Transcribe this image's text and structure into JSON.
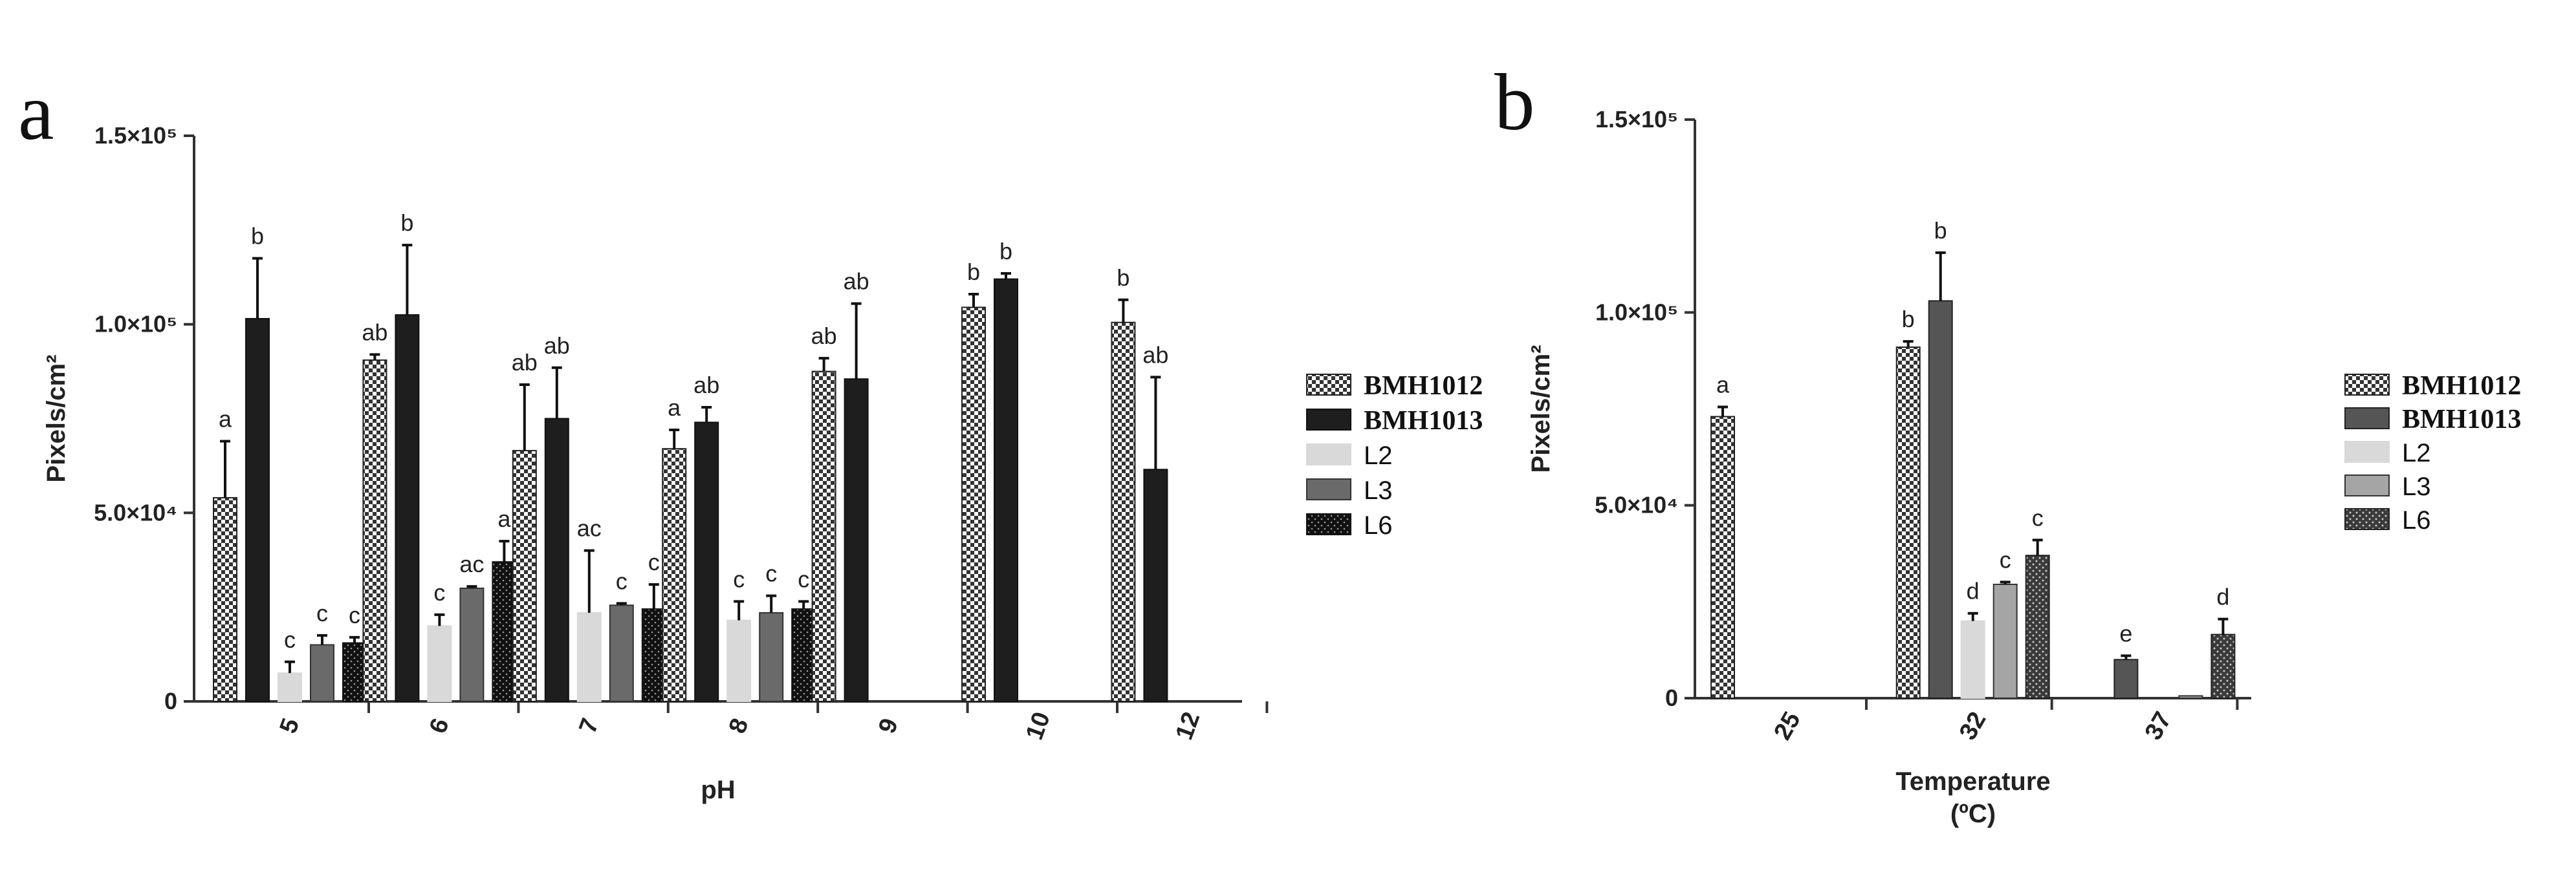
{
  "chart_data": [
    {
      "type": "bar",
      "panel_label": "a",
      "xlabel": "pH",
      "ylabel": "Pixels/cm²",
      "ylim": [
        0,
        150000
      ],
      "yticks": [
        "0",
        "5.0×10⁴",
        "1.0×10⁵",
        "1.5×10⁵"
      ],
      "ytick_values": [
        0,
        50000,
        100000,
        150000
      ],
      "categories": [
        "5",
        "6",
        "7",
        "8",
        "9",
        "10",
        "12"
      ],
      "legend_position": "right",
      "series": [
        {
          "name": "BMH1012",
          "pattern": "checker",
          "values": [
            54000,
            90500,
            66500,
            67000,
            87500,
            104500,
            100500
          ],
          "errors": [
            15000,
            1500,
            17500,
            5000,
            3500,
            3500,
            6000
          ],
          "labels": [
            "a",
            "ab",
            "ab",
            "a",
            "ab",
            "b",
            "b"
          ]
        },
        {
          "name": "BMH1013",
          "pattern": "black",
          "values": [
            101500,
            102500,
            75000,
            74000,
            85500,
            112000,
            61500
          ],
          "errors": [
            16000,
            18500,
            13500,
            4000,
            20000,
            1500,
            24500
          ],
          "labels": [
            "b",
            "b",
            "ab",
            "ab",
            "ab",
            "b",
            "ab"
          ]
        },
        {
          "name": "L2",
          "pattern": "light",
          "values": [
            7500,
            20000,
            23500,
            21500,
            null,
            null,
            null
          ],
          "errors": [
            3000,
            3000,
            16500,
            5000,
            null,
            null,
            null
          ],
          "labels": [
            "c",
            "c",
            "ac",
            "c",
            "",
            "",
            ""
          ]
        },
        {
          "name": "L3",
          "pattern": "gray",
          "values": [
            15000,
            30000,
            25500,
            23500,
            null,
            null,
            null
          ],
          "errors": [
            2500,
            500,
            500,
            4500,
            null,
            null,
            null
          ],
          "labels": [
            "c",
            "ac",
            "c",
            "c",
            "",
            "",
            ""
          ]
        },
        {
          "name": "L6",
          "pattern": "dotted-black",
          "values": [
            15500,
            37000,
            24500,
            24500,
            null,
            null,
            null
          ],
          "errors": [
            1500,
            5500,
            6500,
            2000,
            null,
            null,
            null
          ],
          "labels": [
            "c",
            "a",
            "c",
            "c",
            "",
            "",
            ""
          ]
        }
      ]
    },
    {
      "type": "bar",
      "panel_label": "b",
      "xlabel": "Temperature",
      "xlabel_unit": "(ºC)",
      "ylabel": "Pixels/cm²",
      "ylim": [
        0,
        150000
      ],
      "yticks": [
        "0",
        "5.0×10⁴",
        "1.0×10⁵",
        "1.5×10⁵"
      ],
      "ytick_values": [
        0,
        50000,
        100000,
        150000
      ],
      "categories": [
        "25",
        "32",
        "37"
      ],
      "legend_position": "right",
      "series": [
        {
          "name": "BMH1012",
          "pattern": "checker",
          "values": [
            73000,
            91000,
            null
          ],
          "errors": [
            2500,
            1500,
            null
          ],
          "labels": [
            "a",
            "b",
            ""
          ]
        },
        {
          "name": "BMH1013",
          "pattern": "dark-gray",
          "values": [
            null,
            103000,
            10000
          ],
          "errors": [
            null,
            12500,
            1000
          ],
          "labels": [
            "",
            "b",
            "e"
          ]
        },
        {
          "name": "L2",
          "pattern": "light",
          "values": [
            null,
            20000,
            null
          ],
          "errors": [
            null,
            2000,
            null
          ],
          "labels": [
            "",
            "d",
            ""
          ]
        },
        {
          "name": "L3",
          "pattern": "mid-gray",
          "values": [
            null,
            29500,
            600
          ],
          "errors": [
            null,
            600,
            null
          ],
          "labels": [
            "",
            "c",
            ""
          ]
        },
        {
          "name": "L6",
          "pattern": "dotted-gray",
          "values": [
            null,
            37000,
            16500
          ],
          "errors": [
            null,
            4000,
            4000
          ],
          "labels": [
            "",
            "c",
            "d"
          ]
        }
      ]
    }
  ]
}
